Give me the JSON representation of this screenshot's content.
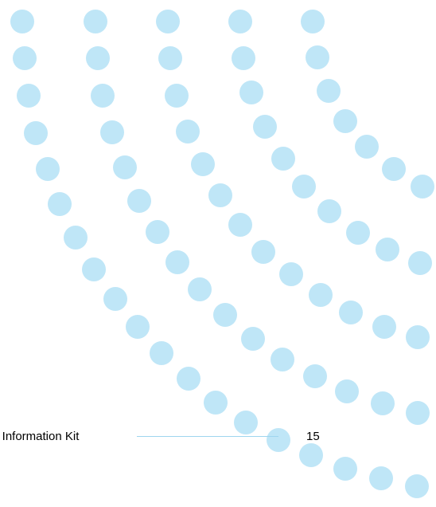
{
  "footer": {
    "title": "rs Information Kit",
    "page_number": "15"
  },
  "colors": {
    "dot": "#bfe6f7",
    "rule": "#9fd6ef",
    "text": "#000000"
  }
}
